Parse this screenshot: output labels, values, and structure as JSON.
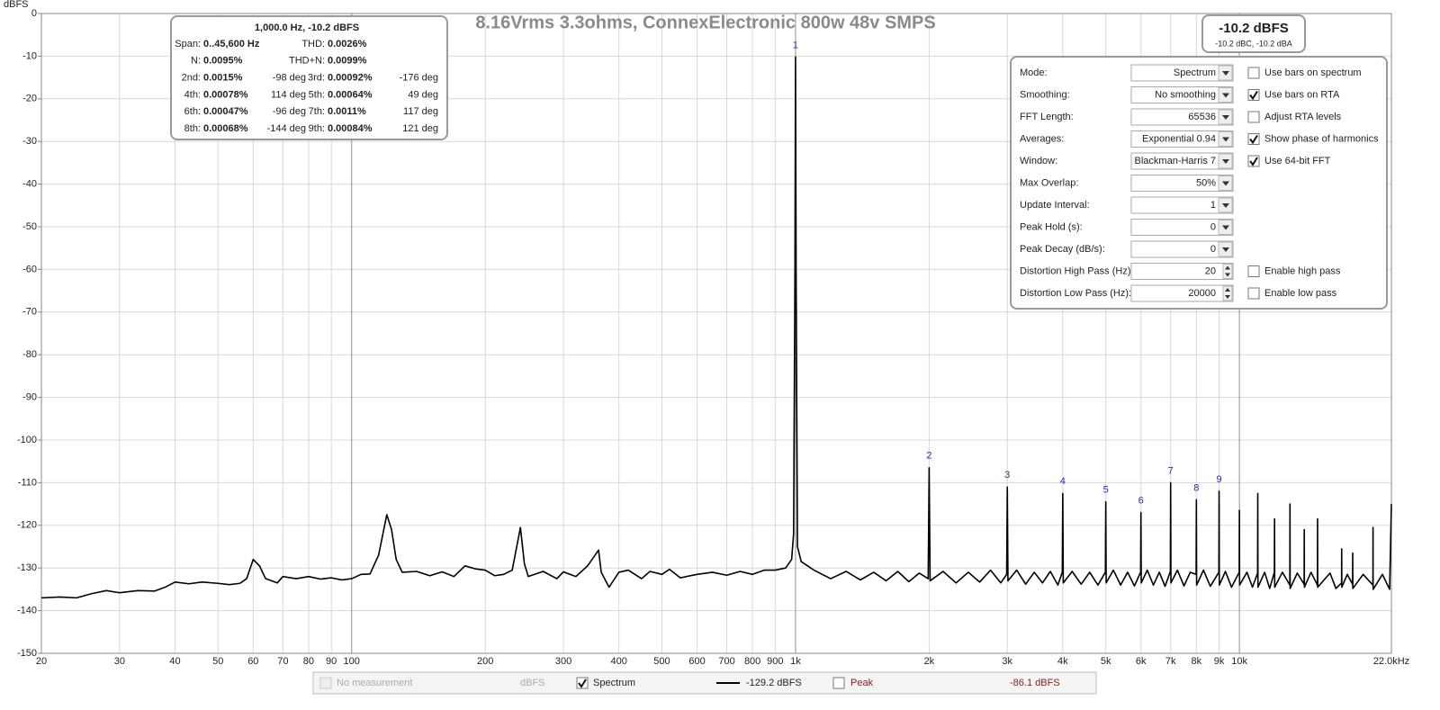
{
  "chart_data": {
    "type": "line",
    "title": "8.16Vrms 3.3ohms, ConnexElectronic 800w 48v SMPS",
    "y_label": "dBFS",
    "log_x": true,
    "grid": true,
    "xlim": [
      20,
      22000
    ],
    "ylim": [
      -150,
      0
    ],
    "xticks": [
      20,
      30,
      40,
      50,
      60,
      70,
      80,
      90,
      100,
      200,
      300,
      400,
      500,
      600,
      700,
      800,
      900,
      {
        "value": 1000,
        "label": "1k"
      },
      {
        "value": 2000,
        "label": "2k"
      },
      {
        "value": 3000,
        "label": "3k"
      },
      {
        "value": 4000,
        "label": "4k"
      },
      {
        "value": 5000,
        "label": "5k"
      },
      {
        "value": 6000,
        "label": "6k"
      },
      {
        "value": 7000,
        "label": "7k"
      },
      {
        "value": 8000,
        "label": "8k"
      },
      {
        "value": 9000,
        "label": "9k"
      },
      {
        "value": 10000,
        "label": "10k"
      },
      {
        "value": 22000,
        "label": "22.0kHz"
      }
    ],
    "yticks": [
      0,
      -10,
      -20,
      -30,
      -40,
      -50,
      -60,
      -70,
      -80,
      -90,
      -100,
      -110,
      -120,
      -130,
      -140,
      -150
    ],
    "x": [
      20,
      22,
      24,
      26,
      28,
      30,
      33,
      36,
      38,
      40,
      43,
      46,
      50,
      53,
      56,
      58,
      60,
      62,
      64,
      68,
      70,
      75,
      80,
      85,
      90,
      95,
      100,
      105,
      110,
      115,
      120,
      123,
      126,
      130,
      140,
      150,
      160,
      170,
      180,
      190,
      200,
      210,
      220,
      230,
      240,
      245,
      250,
      270,
      290,
      300,
      320,
      340,
      360,
      365,
      380,
      400,
      420,
      450,
      470,
      500,
      520,
      550,
      600,
      650,
      700,
      750,
      800,
      850,
      900,
      950,
      980,
      990,
      997,
      1000,
      1003,
      1010,
      1030,
      1100,
      1200,
      1300,
      1400,
      1500,
      1600,
      1700,
      1800,
      1900,
      1990,
      2000,
      2010,
      2150,
      2300,
      2450,
      2600,
      2750,
      2900,
      2990,
      3000,
      3010,
      3150,
      3300,
      3450,
      3600,
      3750,
      3900,
      3990,
      4000,
      4010,
      4200,
      4400,
      4600,
      4800,
      4990,
      5000,
      5010,
      5200,
      5400,
      5600,
      5800,
      5990,
      6000,
      6010,
      6200,
      6400,
      6600,
      6800,
      6990,
      7000,
      7010,
      7250,
      7500,
      7750,
      7990,
      8000,
      8010,
      8300,
      8600,
      8990,
      9000,
      9010,
      9300,
      9600,
      9990,
      10000,
      10010,
      10400,
      10700,
      10990,
      11000,
      11010,
      11400,
      11700,
      11990,
      12000,
      12010,
      12500,
      12990,
      13000,
      13010,
      13500,
      13990,
      14000,
      14010,
      14500,
      14990,
      15000,
      15010,
      16000,
      16500,
      16990,
      17000,
      17010,
      17500,
      17990,
      18000,
      18010,
      19000,
      19990,
      20000,
      20010,
      21000,
      21800,
      22000
    ],
    "series": [
      {
        "color": "#000000",
        "values": [
          -137,
          -136.8,
          -137,
          -136,
          -135.3,
          -135.8,
          -135.3,
          -135.4,
          -134.5,
          -133.3,
          -133.7,
          -133.3,
          -133.6,
          -133.9,
          -133.6,
          -132.5,
          -128,
          -129.5,
          -132.5,
          -133.5,
          -132,
          -132.5,
          -132,
          -132.6,
          -132.3,
          -132.8,
          -132.5,
          -131.5,
          -131.4,
          -127,
          -117.5,
          -121,
          -128,
          -131,
          -130.8,
          -131.8,
          -130.9,
          -132,
          -129.5,
          -130.2,
          -130.5,
          -131.8,
          -131.5,
          -130.5,
          -120.5,
          -129,
          -132,
          -130.8,
          -132.5,
          -130.9,
          -132,
          -129.5,
          -125.8,
          -131,
          -134.5,
          -131,
          -130.5,
          -132.5,
          -130.8,
          -131.5,
          -130.3,
          -132.3,
          -131.5,
          -131,
          -131.7,
          -130.8,
          -131.5,
          -130.5,
          -130.5,
          -130,
          -128,
          -122,
          -60,
          -10.2,
          -60,
          -125,
          -128.5,
          -130.5,
          -132.5,
          -130.8,
          -132.8,
          -131,
          -133,
          -130.8,
          -133.2,
          -131.2,
          -132.5,
          -106.5,
          -133,
          -130.8,
          -133.5,
          -131,
          -133.3,
          -130.5,
          -133.5,
          -131.5,
          -111,
          -133,
          -130.5,
          -133.8,
          -131,
          -133.5,
          -130.8,
          -134,
          -131,
          -112.5,
          -133.5,
          -130.8,
          -133.8,
          -131,
          -134,
          -131,
          -114.5,
          -133.5,
          -130.5,
          -134,
          -131,
          -134.2,
          -131,
          -117,
          -133.5,
          -130.5,
          -134,
          -131,
          -134.3,
          -130.8,
          -110,
          -133.5,
          -130.5,
          -134.2,
          -131,
          -131.5,
          -114,
          -134,
          -130.5,
          -134.3,
          -131,
          -112,
          -134,
          -130.8,
          -134.5,
          -131,
          -116.5,
          -134,
          -131,
          -134.5,
          -131.2,
          -112.5,
          -134.5,
          -131,
          -134.8,
          -131,
          -118.5,
          -134.5,
          -131,
          -134,
          -115,
          -134.8,
          -131.2,
          -133.8,
          -121,
          -134.5,
          -131,
          -134,
          -118.5,
          -134.5,
          -131.2,
          -134.8,
          -133.5,
          -125.5,
          -134.5,
          -131.5,
          -133.8,
          -126.5,
          -134.8,
          -131.5,
          -134,
          -120.5,
          -135,
          -131.5,
          -135,
          -115
        ]
      }
    ],
    "markers": [
      {
        "label": "1",
        "x": 1000,
        "y": -10.2
      },
      {
        "label": "2",
        "x": 2000,
        "y": -106.5
      },
      {
        "label": "3",
        "x": 3000,
        "y": -111
      },
      {
        "label": "4",
        "x": 4000,
        "y": -112.5
      },
      {
        "label": "5",
        "x": 5000,
        "y": -114.5
      },
      {
        "label": "6",
        "x": 6000,
        "y": -117
      },
      {
        "label": "7",
        "x": 7000,
        "y": -110
      },
      {
        "label": "8",
        "x": 8000,
        "y": -114
      },
      {
        "label": "9",
        "x": 9000,
        "y": -112
      }
    ]
  },
  "readout": {
    "title": "1,000.0 Hz, -10.2 dBFS",
    "rows": [
      [
        "Span:",
        "0..45,600 Hz",
        "THD:",
        "0.0026%"
      ],
      [
        "N:",
        "0.0095%",
        "THD+N:",
        "0.0099%"
      ],
      [
        "2nd:",
        "0.0015%",
        "-98 deg",
        "3rd:",
        "0.00092%",
        "-176 deg"
      ],
      [
        "4th:",
        "0.00078%",
        "114 deg",
        "5th:",
        "0.00064%",
        "49 deg"
      ],
      [
        "6th:",
        "0.00047%",
        "-96 deg",
        "7th:",
        "0.0011%",
        "117 deg"
      ],
      [
        "8th:",
        "0.00068%",
        "-144 deg",
        "9th:",
        "0.00084%",
        "121 deg"
      ]
    ]
  },
  "level": {
    "main": "-10.2 dBFS",
    "sub": "-10.2 dBC, -10.2 dBA"
  },
  "settings": [
    {
      "label": "Mode:",
      "value": "Spectrum",
      "control": "dropdown",
      "option": {
        "label": "Use bars on spectrum",
        "checked": false
      }
    },
    {
      "label": "Smoothing:",
      "value": "No smoothing",
      "control": "dropdown",
      "option": {
        "label": "Use bars on RTA",
        "checked": true
      }
    },
    {
      "label": "FFT Length:",
      "value": "65536",
      "control": "dropdown",
      "option": {
        "label": "Adjust RTA levels",
        "checked": false
      }
    },
    {
      "label": "Averages:",
      "value": "Exponential 0.94",
      "control": "dropdown",
      "option": {
        "label": "Show phase of harmonics",
        "checked": true
      }
    },
    {
      "label": "Window:",
      "value": "Blackman-Harris 7",
      "control": "dropdown",
      "option": {
        "label": "Use 64-bit FFT",
        "checked": true
      }
    },
    {
      "label": "Max Overlap:",
      "value": "50%",
      "control": "dropdown"
    },
    {
      "label": "Update Interval:",
      "value": "1",
      "control": "dropdown"
    },
    {
      "label": "Peak Hold (s):",
      "value": "0",
      "control": "dropdown"
    },
    {
      "label": "Peak Decay (dB/s):",
      "value": "0",
      "control": "dropdown"
    },
    {
      "label": "Distortion High Pass (Hz):",
      "value": "20",
      "control": "spin",
      "option": {
        "label": "Enable high pass",
        "checked": false
      }
    },
    {
      "label": "Distortion Low Pass (Hz):",
      "value": "20000",
      "control": "spin",
      "option": {
        "label": "Enable low pass",
        "checked": false
      }
    }
  ],
  "legend_bar": {
    "no_measurement": "No measurement",
    "no_measurement_unit": "dBFS",
    "spectrum": "Spectrum",
    "spectrum_checked": true,
    "spectrum_reading": "-129.2 dBFS",
    "peak": "Peak",
    "peak_checked": false,
    "peak_reading": "-86.1 dBFS"
  }
}
